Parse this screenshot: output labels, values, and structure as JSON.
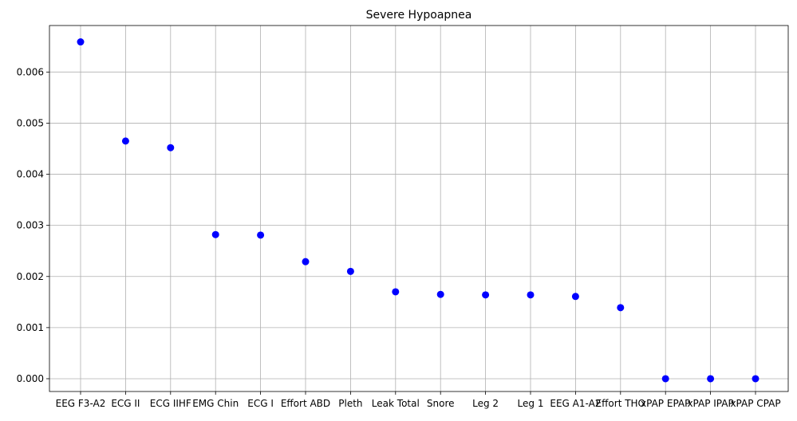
{
  "chart_data": {
    "type": "scatter",
    "title": "Severe Hypoapnea",
    "xlabel": "",
    "ylabel": "",
    "categories": [
      "EEG F3-A2",
      "ECG II",
      "ECG IIHF",
      "EMG Chin",
      "ECG I",
      "Effort ABD",
      "Pleth",
      "Leak Total",
      "Snore",
      "Leg 2",
      "Leg 1",
      "EEG A1-A2",
      "Effort THO",
      "xPAP EPAP",
      "xPAP IPAP",
      "xPAP CPAP"
    ],
    "values": [
      0.00659,
      0.00465,
      0.00452,
      0.00282,
      0.00281,
      0.00229,
      0.0021,
      0.0017,
      0.00165,
      0.00164,
      0.00164,
      0.00161,
      0.00139,
      0.0,
      0.0,
      0.0
    ],
    "ylim": [
      -0.00025,
      0.00691
    ],
    "yticks": [
      0.0,
      0.001,
      0.002,
      0.003,
      0.004,
      0.005,
      0.006
    ],
    "ytick_labels": [
      "0.000",
      "0.001",
      "0.002",
      "0.003",
      "0.004",
      "0.005",
      "0.006"
    ],
    "grid": true,
    "marker_color": "#0000ff",
    "grid_color": "#b0b0b0"
  }
}
